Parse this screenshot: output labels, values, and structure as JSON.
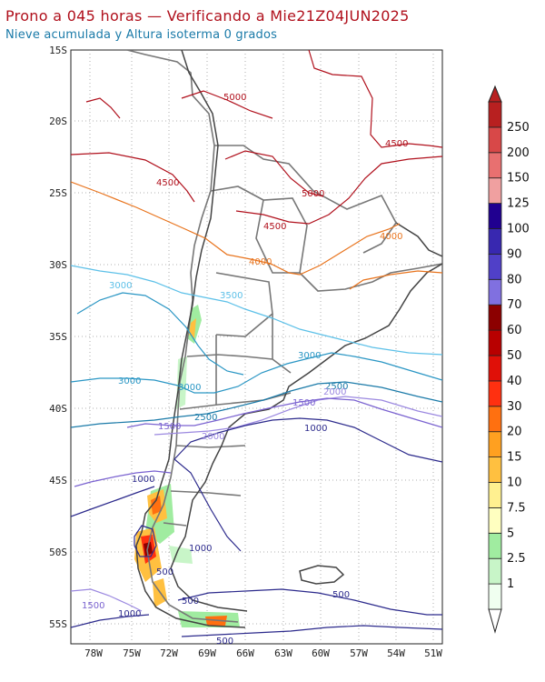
{
  "header": {
    "title": "Prono a 045 horas — Verificando a Mie21Z04JUN2025",
    "subtitle": "Nieve acumulada y Altura isoterma 0 grados"
  },
  "map": {
    "lat_ticks": [
      "15S",
      "20S",
      "25S",
      "30S",
      "35S",
      "40S",
      "45S",
      "50S",
      "55S"
    ],
    "lon_ticks": [
      "78W",
      "75W",
      "72W",
      "69W",
      "66W",
      "63W",
      "60W",
      "57W",
      "54W",
      "51W"
    ]
  },
  "contour_labels": [
    {
      "text": "5000",
      "color": "#b0101c"
    },
    {
      "text": "4500",
      "color": "#b0101c"
    },
    {
      "text": "4500",
      "color": "#b0101c"
    },
    {
      "text": "5000",
      "color": "#b0101c"
    },
    {
      "text": "4500",
      "color": "#b0101c"
    },
    {
      "text": "4000",
      "color": "#e8731c"
    },
    {
      "text": "4000",
      "color": "#e8731c"
    },
    {
      "text": "3500",
      "color": "#5cc0e8"
    },
    {
      "text": "3000",
      "color": "#5cc0e8"
    },
    {
      "text": "3000",
      "color": "#2a96c4"
    },
    {
      "text": "3000",
      "color": "#2a96c4"
    },
    {
      "text": "3000",
      "color": "#2a96c4"
    },
    {
      "text": "2500",
      "color": "#1a7aa8"
    },
    {
      "text": "2500",
      "color": "#1a7aa8"
    },
    {
      "text": "2000",
      "color": "#9b88e0"
    },
    {
      "text": "2000",
      "color": "#9b88e0"
    },
    {
      "text": "1500",
      "color": "#7a62d0"
    },
    {
      "text": "1500",
      "color": "#7a62d0"
    },
    {
      "text": "1500",
      "color": "#7a62d0"
    },
    {
      "text": "1000",
      "color": "#2c2a8c"
    },
    {
      "text": "1000",
      "color": "#2c2a8c"
    },
    {
      "text": "1000",
      "color": "#2c2a8c"
    },
    {
      "text": "1000",
      "color": "#2c2a8c"
    },
    {
      "text": "500",
      "color": "#2c2a8c"
    },
    {
      "text": "500",
      "color": "#2c2a8c"
    },
    {
      "text": "500",
      "color": "#2c2a8c"
    },
    {
      "text": "500",
      "color": "#2c2a8c"
    }
  ],
  "colorbar": {
    "labels": [
      "250",
      "200",
      "150",
      "125",
      "100",
      "90",
      "80",
      "70",
      "60",
      "50",
      "40",
      "30",
      "20",
      "15",
      "10",
      "7.5",
      "5",
      "2.5",
      "1"
    ],
    "colors": [
      "#f0fff0",
      "#c8f5c8",
      "#a0eca0",
      "#ffffc0",
      "#fff090",
      "#ffc040",
      "#ffa020",
      "#ff7010",
      "#ff3010",
      "#e01008",
      "#b80000",
      "#8c0000",
      "#8070e0",
      "#5040c8",
      "#3828b0",
      "#200090",
      "#f0a0a0",
      "#e87070",
      "#d84848",
      "#b82020"
    ]
  }
}
